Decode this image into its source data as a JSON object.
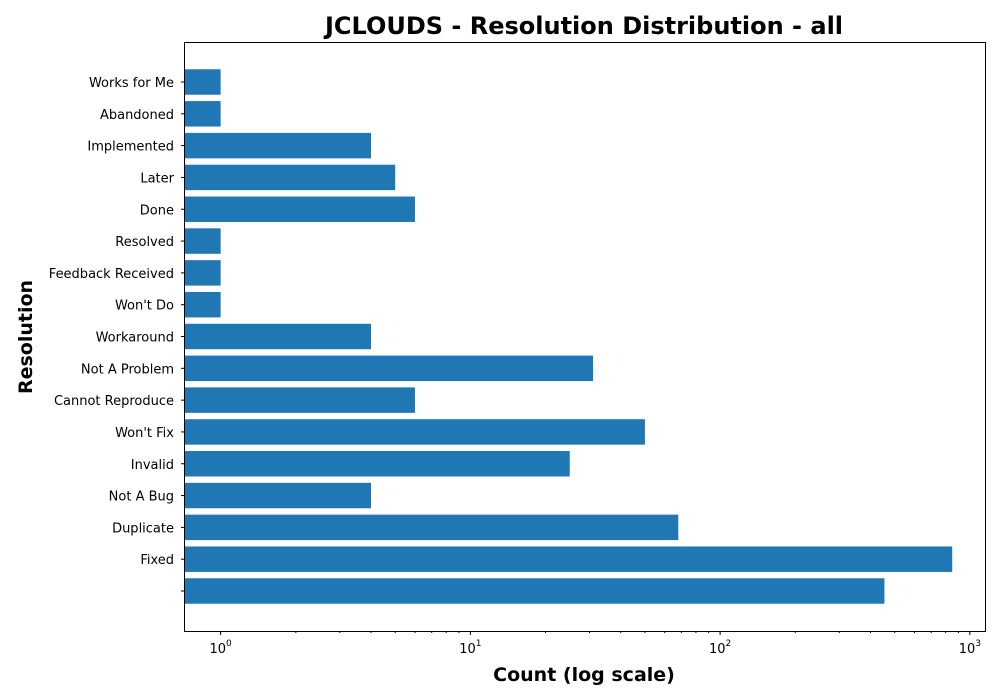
{
  "chart_data": {
    "type": "bar",
    "orientation": "horizontal",
    "title": "JCLOUDS - Resolution Distribution - all",
    "xlabel": "Count (log scale)",
    "ylabel": "Resolution",
    "xscale": "log",
    "xlim": [
      0.72,
      1150
    ],
    "x_ticks": [
      {
        "base": "10",
        "exp": "0",
        "value": 1
      },
      {
        "base": "10",
        "exp": "1",
        "value": 10
      },
      {
        "base": "10",
        "exp": "2",
        "value": 100
      },
      {
        "base": "10",
        "exp": "3",
        "value": 1000
      }
    ],
    "grid": false,
    "color": "#1f77b4",
    "categories": [
      "",
      "Fixed",
      "Duplicate",
      "Not A Bug",
      "Invalid",
      "Won't Fix",
      "Cannot Reproduce",
      "Not A Problem",
      "Workaround",
      "Won't Do",
      "Feedback Received",
      "Resolved",
      "Done",
      "Later",
      "Implemented",
      "Abandoned",
      "Works for Me"
    ],
    "values": [
      455,
      850,
      68,
      4,
      25,
      50,
      6,
      31,
      4,
      1,
      1,
      1,
      6,
      5,
      4,
      1,
      1
    ]
  }
}
